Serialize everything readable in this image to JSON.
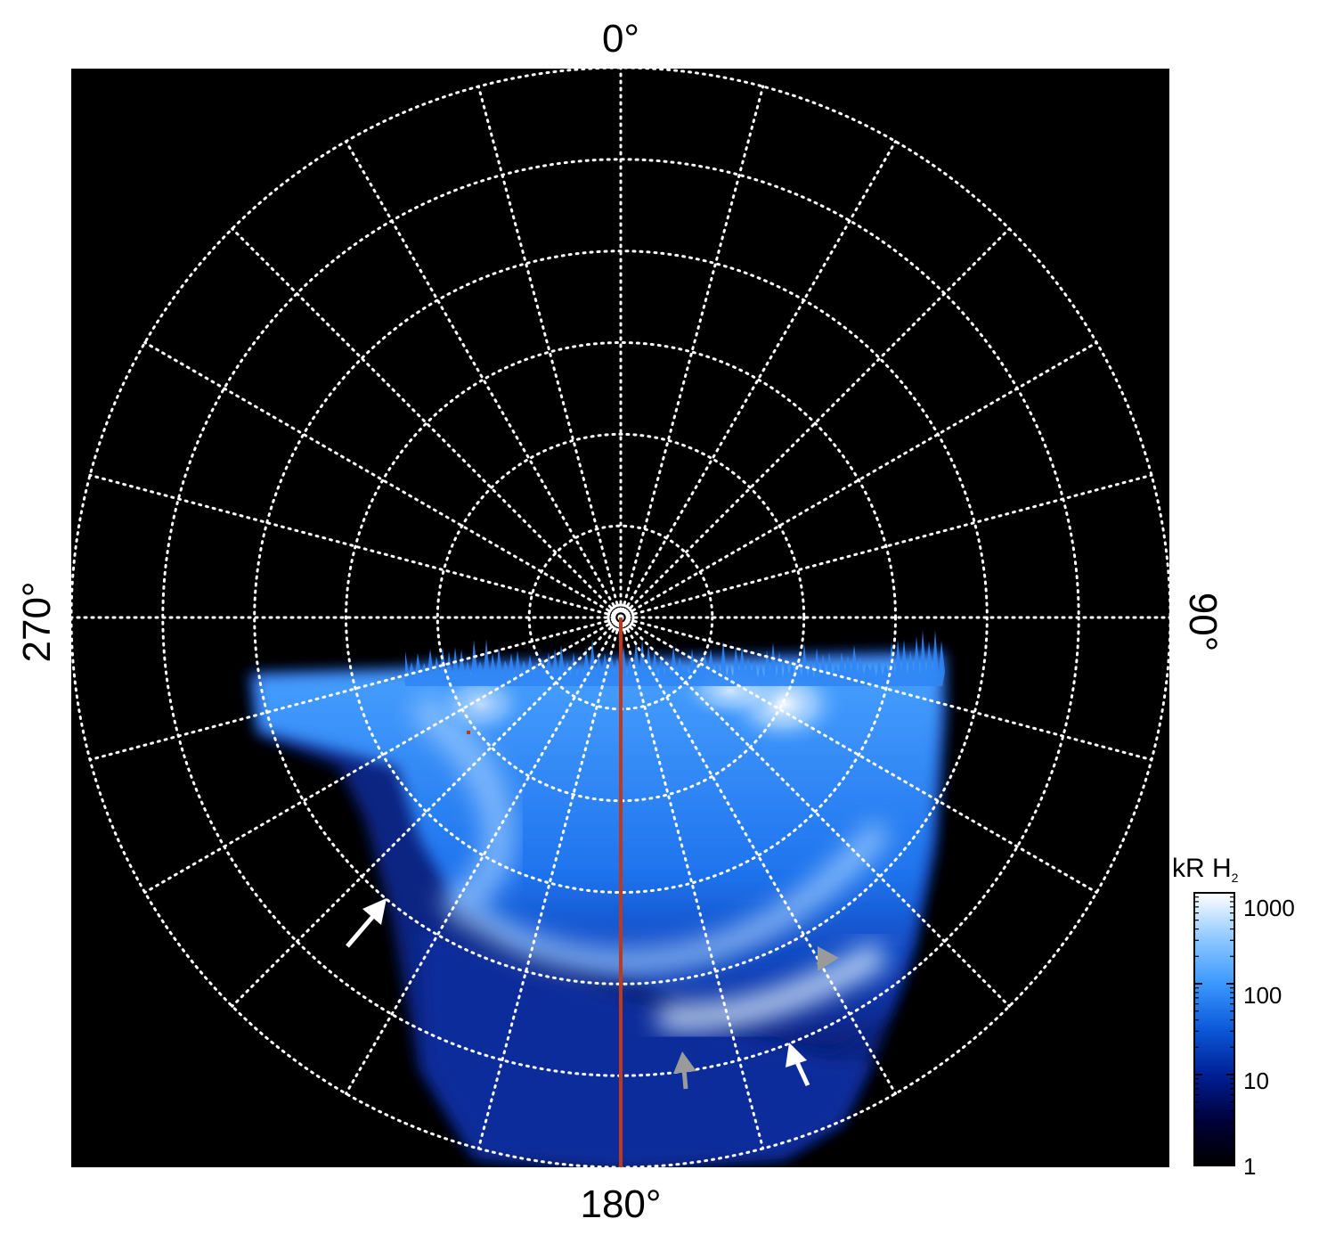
{
  "chart_data": {
    "type": "heatmap",
    "projection": "polar",
    "angle_labels": [
      "0°",
      "90°",
      "180°",
      "270°"
    ],
    "colorbar": {
      "label_main": "kR H",
      "label_sub": "2",
      "scale": "log",
      "range": [
        1,
        1000
      ],
      "ticks": [
        "1",
        "10",
        "100",
        "1000"
      ],
      "colors": [
        "#000000",
        "#00003c",
        "#001f96",
        "#0b58d8",
        "#3b98ff",
        "#8fc8ff",
        "#ffffff"
      ]
    },
    "grid": {
      "meridians_deg": [
        0,
        15,
        30,
        45,
        60,
        75,
        90,
        105,
        120,
        135,
        150,
        165,
        180,
        195,
        210,
        225,
        240,
        255,
        270,
        285,
        300,
        315,
        330,
        345
      ],
      "circles": 6
    },
    "marker_line_angle_deg": 180,
    "marker_line_color": "#c0391b",
    "annotations": [
      {
        "kind": "arrow",
        "color": "#ffffff"
      },
      {
        "kind": "arrow",
        "color": "#ffffff"
      },
      {
        "kind": "arrow",
        "color": "#9a9a9a"
      },
      {
        "kind": "arrow",
        "color": "#9a9a9a"
      }
    ]
  }
}
